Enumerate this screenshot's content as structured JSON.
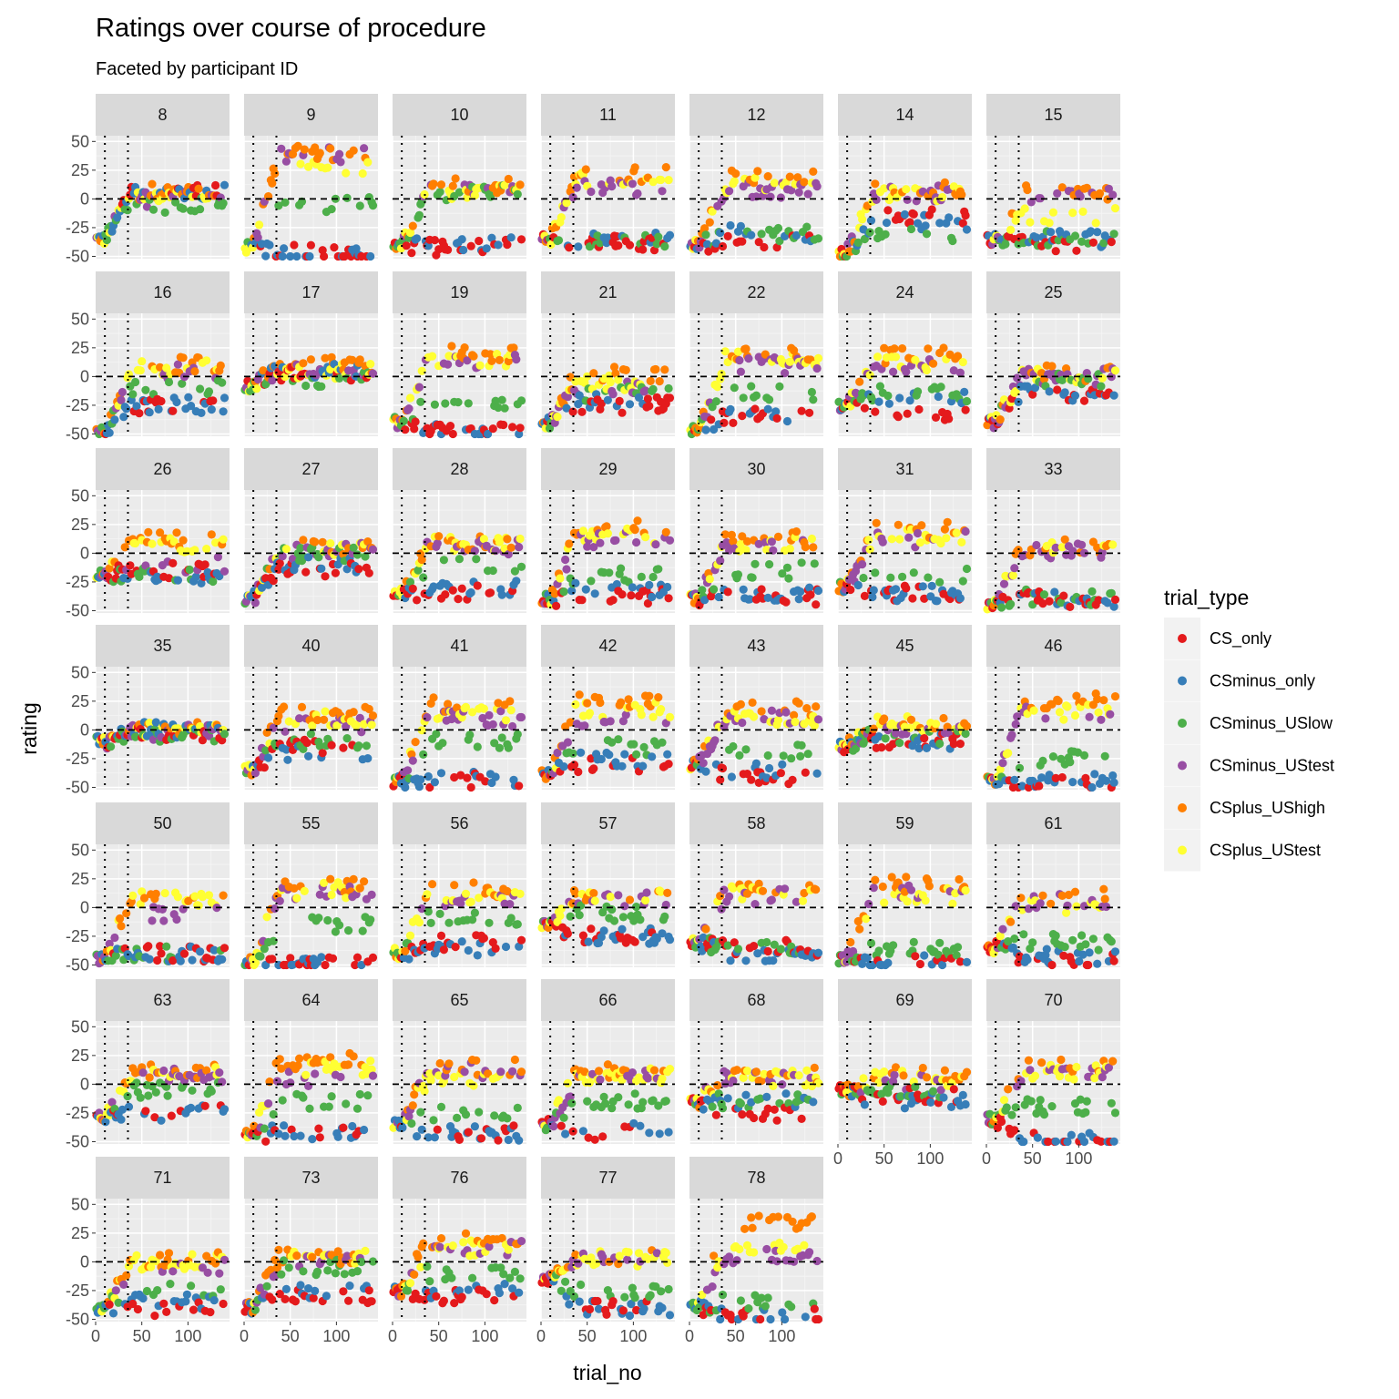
{
  "chart_data": {
    "type": "scatter",
    "title": "Ratings over course of procedure",
    "subtitle": "Faceted by participant ID",
    "xlabel": "trial_no",
    "ylabel": "rating",
    "xlim": [
      0,
      145
    ],
    "ylim": [
      -52,
      55
    ],
    "x_ticks": [
      0,
      50,
      100
    ],
    "y_ticks": [
      -50,
      -25,
      0,
      25,
      50
    ],
    "vlines": [
      10,
      35
    ],
    "hline": 0,
    "legend": {
      "title": "trial_type",
      "entries": [
        "CS_only",
        "CSminus_only",
        "CSminus_USlow",
        "CSminus_UStest",
        "CSplus_UShigh",
        "CSplus_UStest"
      ],
      "colors": [
        "#e41a1c",
        "#377eb8",
        "#4daf4a",
        "#984ea3",
        "#ff7f00",
        "#ffff33"
      ]
    },
    "facets": [
      {
        "id": "8",
        "levels": [
          8,
          6,
          -5,
          0,
          6,
          4
        ],
        "init": -35
      },
      {
        "id": "9",
        "levels": [
          -47,
          -47,
          -5,
          38,
          40,
          28
        ],
        "init": -42
      },
      {
        "id": "10",
        "levels": [
          -42,
          -40,
          5,
          8,
          12,
          6
        ],
        "init": -42
      },
      {
        "id": "11",
        "levels": [
          -38,
          -35,
          -35,
          10,
          22,
          18
        ],
        "init": -35
      },
      {
        "id": "12",
        "levels": [
          -38,
          -30,
          -30,
          8,
          18,
          12
        ],
        "init": -40
      },
      {
        "id": "14",
        "levels": [
          -15,
          -20,
          -30,
          5,
          8,
          5
        ],
        "init": -47
      },
      {
        "id": "15",
        "levels": [
          -40,
          -35,
          -35,
          2,
          5,
          -15
        ],
        "init": -35
      },
      {
        "id": "16",
        "levels": [
          -25,
          -25,
          -10,
          5,
          10,
          8
        ],
        "init": -48
      },
      {
        "id": "17",
        "levels": [
          2,
          5,
          -2,
          5,
          10,
          5
        ],
        "init": -8
      },
      {
        "id": "19",
        "levels": [
          -47,
          -47,
          -25,
          12,
          20,
          15
        ],
        "init": -40
      },
      {
        "id": "21",
        "levels": [
          -25,
          -20,
          -15,
          -10,
          2,
          -5
        ],
        "init": -40
      },
      {
        "id": "22",
        "levels": [
          -35,
          -35,
          -15,
          10,
          20,
          15
        ],
        "init": -48
      },
      {
        "id": "24",
        "levels": [
          -35,
          -20,
          -15,
          10,
          18,
          12
        ],
        "init": -25
      },
      {
        "id": "25",
        "levels": [
          -15,
          -15,
          -3,
          0,
          3,
          2
        ],
        "init": -40
      },
      {
        "id": "26",
        "levels": [
          -15,
          -20,
          -20,
          -10,
          12,
          8
        ],
        "init": -20
      },
      {
        "id": "27",
        "levels": [
          -15,
          -10,
          0,
          2,
          5,
          3
        ],
        "init": -40
      },
      {
        "id": "28",
        "levels": [
          -35,
          -30,
          -12,
          5,
          10,
          8
        ],
        "init": -35
      },
      {
        "id": "29",
        "levels": [
          -38,
          -32,
          -20,
          12,
          22,
          15
        ],
        "init": -40
      },
      {
        "id": "30",
        "levels": [
          -38,
          -35,
          -15,
          8,
          12,
          8
        ],
        "init": -40
      },
      {
        "id": "31",
        "levels": [
          -35,
          -35,
          -20,
          12,
          20,
          15
        ],
        "init": -30
      },
      {
        "id": "33",
        "levels": [
          -40,
          -40,
          -38,
          2,
          5,
          3
        ],
        "init": -45
      },
      {
        "id": "35",
        "levels": [
          -3,
          0,
          -5,
          -2,
          2,
          0
        ],
        "init": -10
      },
      {
        "id": "40",
        "levels": [
          -15,
          -20,
          -10,
          5,
          15,
          10
        ],
        "init": -35
      },
      {
        "id": "41",
        "levels": [
          -45,
          -42,
          -10,
          10,
          22,
          15
        ],
        "init": -45
      },
      {
        "id": "42",
        "levels": [
          -30,
          -25,
          -15,
          10,
          25,
          18
        ],
        "init": -40
      },
      {
        "id": "43",
        "levels": [
          -40,
          -35,
          -20,
          10,
          18,
          10
        ],
        "init": -30
      },
      {
        "id": "45",
        "levels": [
          -10,
          -10,
          -5,
          3,
          8,
          5
        ],
        "init": -15
      },
      {
        "id": "46",
        "levels": [
          -48,
          -45,
          -25,
          15,
          25,
          15
        ],
        "init": -45
      },
      {
        "id": "50",
        "levels": [
          -40,
          -40,
          -40,
          -5,
          5,
          8
        ],
        "init": -45
      },
      {
        "id": "55",
        "levels": [
          -50,
          -50,
          -15,
          12,
          20,
          15
        ],
        "init": -48
      },
      {
        "id": "56",
        "levels": [
          -30,
          -35,
          -10,
          5,
          15,
          8
        ],
        "init": -40
      },
      {
        "id": "57",
        "levels": [
          -25,
          -25,
          -5,
          8,
          12,
          10
        ],
        "init": -15
      },
      {
        "id": "58",
        "levels": [
          -35,
          -40,
          -35,
          10,
          18,
          12
        ],
        "init": -30
      },
      {
        "id": "59",
        "levels": [
          -48,
          -48,
          -35,
          15,
          20,
          10
        ],
        "init": -45
      },
      {
        "id": "61",
        "levels": [
          -45,
          -42,
          -30,
          5,
          10,
          0
        ],
        "init": -35
      },
      {
        "id": "63",
        "levels": [
          -25,
          -25,
          -5,
          8,
          12,
          8
        ],
        "init": -30
      },
      {
        "id": "64",
        "levels": [
          -42,
          -42,
          -15,
          5,
          20,
          15
        ],
        "init": -45
      },
      {
        "id": "65",
        "levels": [
          -42,
          -42,
          -25,
          12,
          15,
          5
        ],
        "init": -35
      },
      {
        "id": "66",
        "levels": [
          -42,
          -40,
          -15,
          5,
          12,
          8
        ],
        "init": -35
      },
      {
        "id": "68",
        "levels": [
          -25,
          -15,
          -15,
          5,
          8,
          5
        ],
        "init": -15
      },
      {
        "id": "69",
        "levels": [
          -10,
          -15,
          -5,
          2,
          8,
          5
        ],
        "init": -5
      },
      {
        "id": "70",
        "levels": [
          -48,
          -48,
          -20,
          10,
          15,
          10
        ],
        "init": -30
      },
      {
        "id": "71",
        "levels": [
          -40,
          -35,
          -25,
          -5,
          2,
          0
        ],
        "init": -40
      },
      {
        "id": "73",
        "levels": [
          -30,
          -25,
          -5,
          0,
          5,
          3
        ],
        "init": -40
      },
      {
        "id": "76",
        "levels": [
          -30,
          -25,
          -10,
          12,
          18,
          12
        ],
        "init": -25
      },
      {
        "id": "77",
        "levels": [
          -40,
          -40,
          -25,
          2,
          5,
          3
        ],
        "init": -15
      },
      {
        "id": "78",
        "levels": [
          -48,
          -48,
          -35,
          5,
          35,
          15
        ],
        "init": -40
      }
    ]
  }
}
